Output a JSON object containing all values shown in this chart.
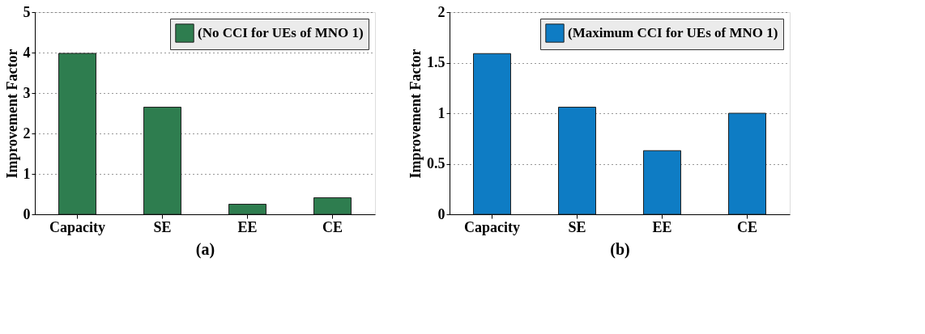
{
  "chart_data": [
    {
      "type": "bar",
      "categories": [
        "Capacity",
        "SE",
        "EE",
        "CE"
      ],
      "xlabel": "(a)",
      "ylabel": "Improvement Factor",
      "series": [
        {
          "name": "(No CCI for UEs of MNO 1)",
          "color": "#2e7d4f",
          "values": [
            3.98,
            2.65,
            0.25,
            0.41
          ]
        }
      ],
      "ylim": [
        0,
        5
      ],
      "yticks": [
        0,
        1,
        2,
        3,
        4,
        5
      ],
      "grid": "y",
      "line_style": "dotted",
      "legend": "top right"
    },
    {
      "type": "bar",
      "categories": [
        "Capacity",
        "SE",
        "EE",
        "CE"
      ],
      "xlabel": "(b)",
      "ylabel": "Improvement Factor",
      "series": [
        {
          "name": "(Maximum CCI for UEs of MNO 1)",
          "color": "#0e7cc4",
          "values": [
            1.59,
            1.06,
            0.63,
            1.0
          ]
        }
      ],
      "ylim": [
        0,
        2
      ],
      "yticks": [
        0,
        0.5,
        1,
        1.5,
        2
      ],
      "grid": "y",
      "line_style": "dotted",
      "legend": "top right"
    }
  ]
}
